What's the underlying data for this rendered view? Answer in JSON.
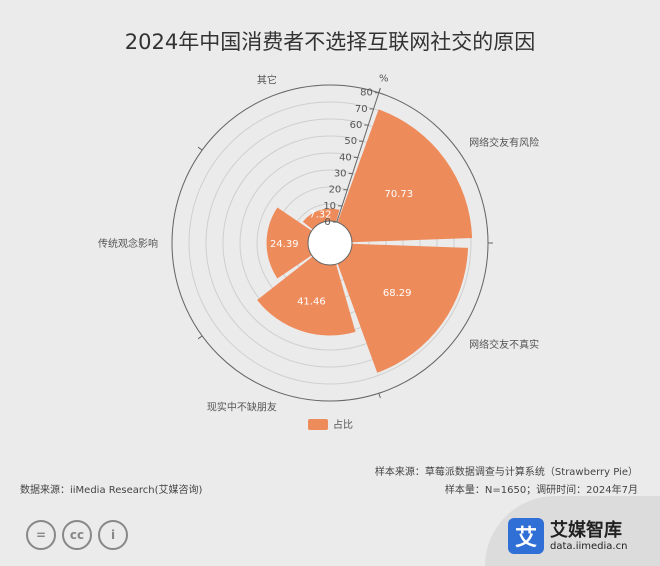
{
  "title": "2024年中国消费者不选择互联网社交的原因",
  "chart_data": {
    "type": "polar-bar",
    "title": "2024年中国消费者不选择互联网社交的原因",
    "unit": "%",
    "rlim": [
      0,
      80
    ],
    "radial_ticks": [
      "0",
      "10",
      "20",
      "30",
      "40",
      "50",
      "60",
      "70",
      "80"
    ],
    "categories": [
      "网络交友有风险",
      "网络交友不真实",
      "现实中不缺朋友",
      "传统观念影响",
      "其它"
    ],
    "series": [
      {
        "name": "占比",
        "values": [
          70.73,
          68.29,
          41.46,
          24.39,
          7.32
        ]
      }
    ],
    "value_labels": [
      "70.73",
      "68.29",
      "41.46",
      "24.39",
      "7.32"
    ],
    "legend": {
      "label": "占比",
      "position": "bottom-center"
    },
    "colors": {
      "bar": "#ee8b5a",
      "grid": "#cfcfcf",
      "axis": "#666666",
      "text": "#555555"
    }
  },
  "footer": {
    "source_left": "数据来源：iiMedia Research(艾媒咨询)",
    "sample_source": "样本来源：草莓派数据调查与计算系统（Strawberry Pie）",
    "sample_info": "样本量：N=1650；调研时间：2024年7月"
  },
  "brand": {
    "logo_char": "艾",
    "name": "艾媒智库",
    "url": "data.iimedia.cn"
  },
  "license_icons": [
    "equals-icon",
    "cc-icon",
    "by-person-icon"
  ],
  "license_glyphs": [
    "=",
    "cc",
    "i"
  ]
}
